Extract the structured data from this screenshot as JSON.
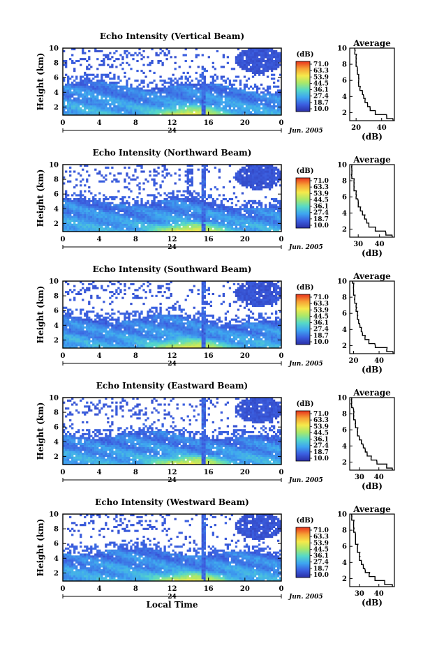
{
  "colors": {
    "scale": [
      "#2b2fa6",
      "#3b5fe0",
      "#3ea6f0",
      "#56d9c8",
      "#a9e86a",
      "#f6e94b",
      "#f7a235",
      "#e8321d"
    ],
    "profile_line": "#000000"
  },
  "x_axis_label": "Local Time",
  "date_label": "Jun. 2005",
  "colorbar_title": "(dB)",
  "colorbar_ticks": [
    "71.0",
    "63.3",
    "53.9",
    "44.5",
    "36.1",
    "27.4",
    "18.7",
    "10.0"
  ],
  "chart_data": [
    {
      "type": "heatmap",
      "title": "Echo Intensity (Vertical Beam)",
      "ylabel": "Height (km)",
      "xlabel": "Local Time",
      "x_ticks": [
        "0",
        "4",
        "8",
        "12",
        "16",
        "20",
        "0"
      ],
      "x_range_hours": [
        0,
        24
      ],
      "date_marker": "24",
      "ylim_km": [
        1,
        10
      ],
      "y_ticks": [
        "2",
        "4",
        "6",
        "8",
        "10"
      ],
      "colorbar_ticks": [
        "71.0",
        "63.3",
        "53.9",
        "44.5",
        "36.1",
        "27.4",
        "18.7",
        "10.0"
      ],
      "colorbar_unit": "(dB)",
      "average_profile": {
        "title": "Average",
        "xlabel": "(dB)",
        "x_ticks": [
          "20",
          "40"
        ],
        "y_ticks": [
          "2",
          "4",
          "6",
          "8",
          "10"
        ],
        "xlim": [
          15,
          50
        ],
        "height_km": [
          1.0,
          1.5,
          2.0,
          2.5,
          3.0,
          3.5,
          4.0,
          4.5,
          5.0,
          5.5,
          6.0,
          6.5,
          7.0,
          7.5,
          8.0,
          8.5,
          9.0,
          9.5,
          10.0
        ],
        "db": [
          49,
          44,
          35,
          31,
          29,
          27,
          26,
          25,
          23,
          22,
          22,
          22,
          21,
          21,
          20,
          20,
          20,
          19,
          19
        ]
      }
    },
    {
      "type": "heatmap",
      "title": "Echo Intensity (Northward Beam)",
      "ylabel": "Height (km)",
      "xlabel": "Local Time",
      "x_ticks": [
        "0",
        "4",
        "8",
        "12",
        "16",
        "20",
        "0"
      ],
      "x_range_hours": [
        0,
        24
      ],
      "date_marker": "24",
      "ylim_km": [
        1,
        10
      ],
      "y_ticks": [
        "2",
        "4",
        "6",
        "8",
        "10"
      ],
      "colorbar_ticks": [
        "71.0",
        "63.3",
        "53.9",
        "44.5",
        "36.1",
        "27.4",
        "18.7",
        "10.0"
      ],
      "colorbar_unit": "(dB)",
      "average_profile": {
        "title": "Average",
        "xlabel": "(dB)",
        "x_ticks": [
          "30",
          "40"
        ],
        "y_ticks": [
          "2",
          "4",
          "6",
          "8",
          "10"
        ],
        "xlim": [
          26,
          47
        ],
        "height_km": [
          1.0,
          1.5,
          2.0,
          2.5,
          3.0,
          3.5,
          4.0,
          4.5,
          5.0,
          5.5,
          6.0,
          6.5,
          7.0,
          7.5,
          8.0,
          8.5,
          9.0,
          9.5,
          10.0
        ],
        "db": [
          46,
          43,
          38,
          35,
          34,
          33,
          32,
          31,
          30,
          30,
          29,
          29,
          28,
          28,
          28,
          27,
          27,
          27,
          27
        ]
      }
    },
    {
      "type": "heatmap",
      "title": "Echo Intensity (Southward Beam)",
      "ylabel": "Height (km)",
      "xlabel": "Local Time",
      "x_ticks": [
        "0",
        "4",
        "8",
        "12",
        "16",
        "20",
        "0"
      ],
      "x_range_hours": [
        0,
        24
      ],
      "date_marker": "24",
      "ylim_km": [
        1,
        10
      ],
      "y_ticks": [
        "2",
        "4",
        "6",
        "8",
        "10"
      ],
      "colorbar_ticks": [
        "71.0",
        "63.3",
        "53.9",
        "44.5",
        "36.1",
        "27.4",
        "18.7",
        "10.0"
      ],
      "colorbar_unit": "(dB)",
      "average_profile": {
        "title": "Average",
        "xlabel": "(dB)",
        "x_ticks": [
          "20",
          "40"
        ],
        "y_ticks": [
          "2",
          "4",
          "6",
          "8",
          "10"
        ],
        "xlim": [
          17,
          52
        ],
        "height_km": [
          1.0,
          1.5,
          2.0,
          2.5,
          3.0,
          3.5,
          4.0,
          4.5,
          5.0,
          5.5,
          6.0,
          6.5,
          7.0,
          7.5,
          8.0,
          8.5,
          9.0,
          9.5,
          10.0
        ],
        "db": [
          51,
          46,
          37,
          32,
          29,
          27,
          26,
          25,
          24,
          23,
          23,
          22,
          22,
          21,
          21,
          20,
          20,
          20,
          19
        ]
      }
    },
    {
      "type": "heatmap",
      "title": "Echo Intensity (Eastward Beam)",
      "ylabel": "Height (km)",
      "xlabel": "Local Time",
      "x_ticks": [
        "0",
        "4",
        "8",
        "12",
        "16",
        "20",
        "0"
      ],
      "x_range_hours": [
        0,
        24
      ],
      "date_marker": "24",
      "ylim_km": [
        1,
        10
      ],
      "y_ticks": [
        "2",
        "4",
        "6",
        "8",
        "10"
      ],
      "colorbar_ticks": [
        "71.0",
        "63.3",
        "53.9",
        "44.5",
        "36.1",
        "27.4",
        "18.7",
        "10.0"
      ],
      "colorbar_unit": "(dB)",
      "average_profile": {
        "title": "Average",
        "xlabel": "(dB)",
        "x_ticks": [
          "30",
          "40"
        ],
        "y_ticks": [
          "2",
          "4",
          "6",
          "8",
          "10"
        ],
        "xlim": [
          25,
          48
        ],
        "height_km": [
          1.0,
          1.5,
          2.0,
          2.5,
          3.0,
          3.5,
          4.0,
          4.5,
          5.0,
          5.5,
          6.0,
          6.5,
          7.0,
          7.5,
          8.0,
          8.5,
          9.0,
          9.5,
          10.0
        ],
        "db": [
          47,
          44,
          39,
          36,
          34,
          33,
          32,
          31,
          30,
          29,
          29,
          28,
          28,
          27,
          27,
          27,
          26,
          26,
          26
        ]
      }
    },
    {
      "type": "heatmap",
      "title": "Echo Intensity (Westward Beam)",
      "ylabel": "Height (km)",
      "xlabel": "Local Time",
      "x_ticks": [
        "0",
        "4",
        "8",
        "12",
        "16",
        "20",
        "0"
      ],
      "x_range_hours": [
        0,
        24
      ],
      "date_marker": "24",
      "ylim_km": [
        1,
        10
      ],
      "y_ticks": [
        "2",
        "4",
        "6",
        "8",
        "10"
      ],
      "colorbar_ticks": [
        "71.0",
        "63.3",
        "53.9",
        "44.5",
        "36.1",
        "27.4",
        "18.7",
        "10.0"
      ],
      "colorbar_unit": "(dB)",
      "average_profile": {
        "title": "Average",
        "xlabel": "(dB)",
        "x_ticks": [
          "30",
          "40"
        ],
        "y_ticks": [
          "2",
          "4",
          "6",
          "8",
          "10"
        ],
        "xlim": [
          25,
          48
        ],
        "height_km": [
          1.0,
          1.5,
          2.0,
          2.5,
          3.0,
          3.5,
          4.0,
          4.5,
          5.0,
          5.5,
          6.0,
          6.5,
          7.0,
          7.5,
          8.0,
          8.5,
          9.0,
          9.5,
          10.0
        ],
        "db": [
          47,
          43,
          38,
          35,
          33,
          32,
          31,
          30,
          30,
          29,
          29,
          28,
          28,
          28,
          27,
          27,
          27,
          26,
          26
        ]
      }
    }
  ]
}
